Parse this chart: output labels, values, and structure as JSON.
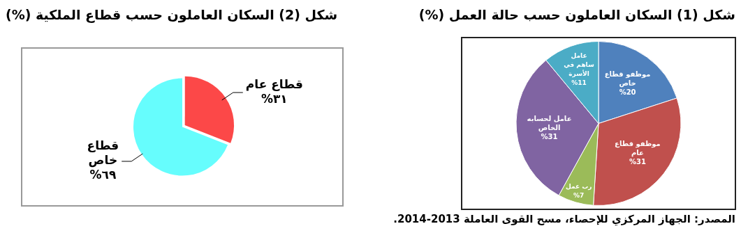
{
  "chart_data": [
    {
      "type": "pie",
      "title": "شكل (1) السكان العاملون حسب حالة العمل (%)",
      "categories": [
        "موظفو قطاع خاص",
        "موظفو قطاع عام",
        "رب عمل",
        "عامل لحسابه الخاص",
        "عامل ساهم في الأسرة"
      ],
      "values": [
        20,
        31,
        7,
        31,
        11
      ],
      "colors": [
        "#4f81bd",
        "#c0504d",
        "#9bbb59",
        "#8064a2",
        "#4bacc6"
      ],
      "value_labels": [
        "%20",
        "%31",
        "%7",
        "%31",
        "%11"
      ],
      "annotations": [
        "المصدر: الجهاز المركزي للإحصاء، مسح القوى العاملة 2013-2014."
      ]
    },
    {
      "type": "pie",
      "title": "شكل (2) السكان العاملون حسب قطاع الملكية (%)",
      "categories": [
        "قطاع عام",
        "قطاع خاص"
      ],
      "values": [
        31,
        69
      ],
      "colors": [
        "#fc4848",
        "#66fdfd"
      ],
      "value_labels": [
        "%٣١",
        "%٦٩"
      ]
    }
  ]
}
